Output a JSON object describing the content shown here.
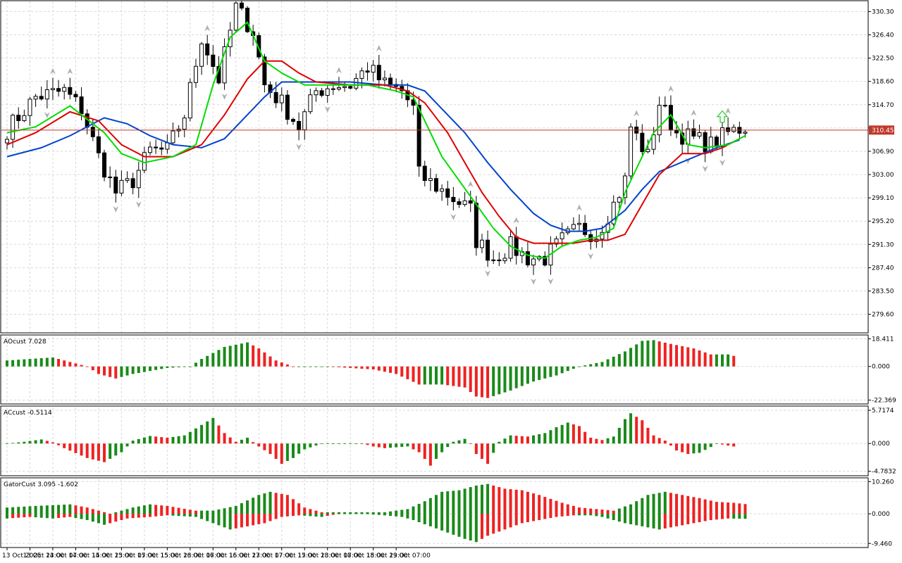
{
  "chart_data": [
    {
      "type": "candlestick",
      "panel": "main",
      "y_ticks": [
        "330.30",
        "326.40",
        "322.50",
        "318.60",
        "314.70",
        "310.80",
        "306.90",
        "303.00",
        "299.10",
        "295.20",
        "291.30",
        "287.40",
        "283.50",
        "279.60"
      ],
      "ylim": [
        276.6,
        332.0
      ],
      "current_price": 310.45,
      "current_price_label": "310.45",
      "x_ticks": [
        "13 Oct 2025",
        "13 Oct 23:00",
        "14 Oct 07:00",
        "14 Oct 15:00",
        "14 Oct 23:00",
        "15 Oct 07:00",
        "15 Oct 15:00",
        "15 Oct 23:00",
        "16 Oct 07:00",
        "16 Oct 15:00",
        "16 Oct 23:00",
        "17 Oct 07:00",
        "17 Oct 15:00",
        "17 Oct 23:00",
        "18 Oct 07:00",
        "18 Oct 15:00",
        "18 Oct 23:00",
        "19 Oct 07:00"
      ],
      "bar_hours": 2,
      "close_path": [
        [
          0,
          310.5
        ],
        [
          5,
          316
        ],
        [
          10,
          317
        ],
        [
          13,
          314
        ],
        [
          16,
          306
        ],
        [
          19,
          300
        ],
        [
          22,
          302
        ],
        [
          25,
          307
        ],
        [
          28,
          307
        ],
        [
          31,
          313
        ],
        [
          34,
          326
        ],
        [
          37,
          319
        ],
        [
          40,
          331
        ],
        [
          43,
          327
        ],
        [
          45,
          318
        ],
        [
          48,
          315
        ],
        [
          51,
          311
        ],
        [
          54,
          317
        ],
        [
          57,
          318
        ],
        [
          60,
          318
        ],
        [
          63,
          321
        ],
        [
          66,
          318
        ],
        [
          69,
          317
        ],
        [
          71,
          314
        ],
        [
          72,
          303
        ],
        [
          75,
          301
        ],
        [
          78,
          299
        ],
        [
          81,
          297
        ],
        [
          82,
          292
        ],
        [
          85,
          289
        ],
        [
          88,
          291
        ],
        [
          91,
          289
        ],
        [
          94,
          289
        ],
        [
          97,
          292
        ],
        [
          100,
          294
        ],
        [
          103,
          293
        ],
        [
          106,
          298
        ],
        [
          108,
          302
        ],
        [
          109,
          311
        ],
        [
          112,
          306
        ],
        [
          114,
          315
        ],
        [
          117,
          310
        ],
        [
          120,
          309
        ],
        [
          123,
          308
        ],
        [
          126,
          310
        ],
        [
          129,
          311
        ]
      ],
      "ma_green": {
        "color": "#00dd00",
        "points": [
          [
            0,
            310
          ],
          [
            5,
            311
          ],
          [
            11,
            314.5
          ],
          [
            17,
            310
          ],
          [
            20,
            306.5
          ],
          [
            24,
            305
          ],
          [
            29,
            306
          ],
          [
            33,
            308
          ],
          [
            36,
            318
          ],
          [
            39,
            326
          ],
          [
            42,
            328.5
          ],
          [
            45,
            322
          ],
          [
            48,
            320
          ],
          [
            52,
            318
          ],
          [
            60,
            318
          ],
          [
            63,
            318
          ],
          [
            68,
            317
          ],
          [
            71,
            316
          ],
          [
            73,
            312
          ],
          [
            76,
            306
          ],
          [
            79,
            302
          ],
          [
            82,
            298
          ],
          [
            85,
            294
          ],
          [
            88,
            291
          ],
          [
            91,
            289.5
          ],
          [
            94,
            289
          ],
          [
            97,
            291
          ],
          [
            100,
            292
          ],
          [
            103,
            292.5
          ],
          [
            106,
            294
          ],
          [
            108,
            300
          ],
          [
            110,
            304
          ],
          [
            113,
            310
          ],
          [
            116,
            313
          ],
          [
            119,
            308
          ],
          [
            122,
            307.5
          ],
          [
            126,
            308
          ],
          [
            129,
            309.5
          ]
        ]
      },
      "ma_red": {
        "color": "#dd0000",
        "points": [
          [
            0,
            308
          ],
          [
            5,
            310
          ],
          [
            11,
            313.5
          ],
          [
            16,
            312
          ],
          [
            20,
            308
          ],
          [
            24,
            306
          ],
          [
            29,
            306
          ],
          [
            34,
            308
          ],
          [
            38,
            313
          ],
          [
            42,
            319
          ],
          [
            45,
            322
          ],
          [
            48,
            322
          ],
          [
            51,
            320
          ],
          [
            54,
            318.5
          ],
          [
            60,
            318
          ],
          [
            66,
            318
          ],
          [
            70,
            317
          ],
          [
            73,
            315
          ],
          [
            77,
            310
          ],
          [
            80,
            305
          ],
          [
            83,
            300
          ],
          [
            86,
            296
          ],
          [
            89,
            292.5
          ],
          [
            92,
            291.5
          ],
          [
            96,
            291.5
          ],
          [
            99,
            291.5
          ],
          [
            102,
            292
          ],
          [
            105,
            292
          ],
          [
            108,
            293
          ],
          [
            111,
            298
          ],
          [
            114,
            303
          ],
          [
            118,
            306.5
          ],
          [
            122,
            306.5
          ],
          [
            125,
            307.5
          ],
          [
            128,
            309
          ]
        ]
      },
      "ma_blue": {
        "color": "#0044cc",
        "points": [
          [
            0,
            306
          ],
          [
            6,
            307.5
          ],
          [
            11,
            309.5
          ],
          [
            17,
            312.5
          ],
          [
            21,
            311.5
          ],
          [
            25,
            309.5
          ],
          [
            29,
            308
          ],
          [
            34,
            307.5
          ],
          [
            38,
            309
          ],
          [
            42,
            313
          ],
          [
            45,
            316
          ],
          [
            48,
            318.5
          ],
          [
            54,
            318.5
          ],
          [
            60,
            318.5
          ],
          [
            66,
            318
          ],
          [
            70,
            318
          ],
          [
            73,
            317
          ],
          [
            76,
            314
          ],
          [
            80,
            310
          ],
          [
            84,
            305
          ],
          [
            88,
            300.5
          ],
          [
            92,
            296.5
          ],
          [
            95,
            294.5
          ],
          [
            98,
            293.5
          ],
          [
            101,
            293.5
          ],
          [
            104,
            294
          ],
          [
            108,
            297
          ],
          [
            111,
            300.5
          ],
          [
            114,
            303.5
          ],
          [
            119,
            305.5
          ],
          [
            124,
            307.5
          ],
          [
            128,
            308.8
          ]
        ]
      },
      "arrow_x": 125,
      "arrow_price": 312.7
    },
    {
      "type": "histogram",
      "panel": "ao",
      "label": "AOcust 7.028",
      "y_ticks": [
        "18.411",
        "0.000",
        "-22.369"
      ],
      "ylim": [
        -24.0,
        20.0
      ],
      "profile": [
        [
          0,
          4
        ],
        [
          8,
          6
        ],
        [
          11,
          3
        ],
        [
          14,
          0
        ],
        [
          16,
          -5
        ],
        [
          19,
          -8
        ],
        [
          22,
          -5
        ],
        [
          28,
          -1
        ],
        [
          32,
          0
        ],
        [
          34,
          5
        ],
        [
          38,
          13
        ],
        [
          42,
          16
        ],
        [
          44,
          12
        ],
        [
          47,
          4
        ],
        [
          50,
          0
        ],
        [
          56,
          0
        ],
        [
          60,
          -1
        ],
        [
          64,
          -2
        ],
        [
          68,
          -5
        ],
        [
          72,
          -12
        ],
        [
          76,
          -12
        ],
        [
          80,
          -14
        ],
        [
          82,
          -20
        ],
        [
          84,
          -21
        ],
        [
          88,
          -16
        ],
        [
          92,
          -10
        ],
        [
          96,
          -6
        ],
        [
          100,
          0
        ],
        [
          104,
          3
        ],
        [
          108,
          10
        ],
        [
          111,
          17
        ],
        [
          113,
          17.5
        ],
        [
          116,
          15
        ],
        [
          120,
          12
        ],
        [
          123,
          8
        ],
        [
          126,
          8
        ],
        [
          127,
          7.028
        ]
      ]
    },
    {
      "type": "histogram",
      "panel": "ac",
      "label": "ACcust -0.5114",
      "y_ticks": [
        "5.7174",
        "0.000",
        "-4.7832"
      ],
      "ylim": [
        -5.3,
        6.2
      ],
      "profile": [
        [
          0,
          0
        ],
        [
          3,
          0.3
        ],
        [
          6,
          0.7
        ],
        [
          8,
          0.2
        ],
        [
          10,
          -0.8
        ],
        [
          14,
          -2.5
        ],
        [
          17,
          -3.2
        ],
        [
          20,
          -1.5
        ],
        [
          22,
          0.5
        ],
        [
          25,
          1.3
        ],
        [
          28,
          1.0
        ],
        [
          31,
          1.4
        ],
        [
          34,
          3.2
        ],
        [
          36,
          4.4
        ],
        [
          38,
          1.8
        ],
        [
          40,
          0.3
        ],
        [
          42,
          1.0
        ],
        [
          44,
          -0.5
        ],
        [
          46,
          -1.8
        ],
        [
          48,
          -3.5
        ],
        [
          50,
          -2.5
        ],
        [
          52,
          -1.0
        ],
        [
          55,
          0
        ],
        [
          58,
          0
        ],
        [
          62,
          0
        ],
        [
          64,
          -0.5
        ],
        [
          66,
          -0.8
        ],
        [
          70,
          -0.5
        ],
        [
          72,
          -1.5
        ],
        [
          74,
          -3.8
        ],
        [
          76,
          -1.5
        ],
        [
          78,
          0.3
        ],
        [
          80,
          0.8
        ],
        [
          81,
          0
        ],
        [
          82,
          -1.8
        ],
        [
          84,
          -3.5
        ],
        [
          86,
          0.3
        ],
        [
          88,
          1.4
        ],
        [
          91,
          1.2
        ],
        [
          94,
          1.8
        ],
        [
          96,
          2.8
        ],
        [
          98,
          3.6
        ],
        [
          100,
          3.0
        ],
        [
          102,
          1.0
        ],
        [
          104,
          0.6
        ],
        [
          106,
          1.2
        ],
        [
          108,
          4.2
        ],
        [
          109,
          5.2
        ],
        [
          111,
          4.0
        ],
        [
          113,
          1.4
        ],
        [
          115,
          0.5
        ],
        [
          117,
          -1.2
        ],
        [
          119,
          -1.8
        ],
        [
          121,
          -1.6
        ],
        [
          123,
          -0.6
        ],
        [
          124,
          0.0
        ],
        [
          127,
          -0.5114
        ]
      ]
    },
    {
      "type": "gator",
      "panel": "gator",
      "label": "GatorCust 3.095 -1.602",
      "y_ticks": [
        "10.260",
        "0.000",
        "-9.460"
      ],
      "ylim": [
        -10.3,
        11.0
      ],
      "upper": [
        [
          0,
          2
        ],
        [
          5,
          2.5
        ],
        [
          11,
          3
        ],
        [
          14,
          2
        ],
        [
          18,
          0
        ],
        [
          22,
          2
        ],
        [
          25,
          3
        ],
        [
          28,
          2.5
        ],
        [
          33,
          1
        ],
        [
          36,
          1
        ],
        [
          40,
          2.5
        ],
        [
          44,
          6
        ],
        [
          46,
          7
        ],
        [
          49,
          6
        ],
        [
          52,
          2
        ],
        [
          55,
          0.5
        ],
        [
          58,
          0.5
        ],
        [
          62,
          0.5
        ],
        [
          66,
          0.5
        ],
        [
          70,
          1.5
        ],
        [
          73,
          4
        ],
        [
          76,
          7
        ],
        [
          79,
          7.5
        ],
        [
          82,
          9
        ],
        [
          84,
          9.5
        ],
        [
          87,
          8
        ],
        [
          90,
          7.5
        ],
        [
          93,
          6
        ],
        [
          97,
          3.5
        ],
        [
          100,
          2
        ],
        [
          103,
          1.5
        ],
        [
          106,
          1
        ],
        [
          109,
          3
        ],
        [
          112,
          6
        ],
        [
          115,
          7
        ],
        [
          118,
          6
        ],
        [
          121,
          5
        ],
        [
          124,
          3.8
        ],
        [
          127,
          3.5
        ],
        [
          129,
          3.095
        ]
      ],
      "lower": [
        [
          0,
          -1.5
        ],
        [
          4,
          -1
        ],
        [
          8,
          -1.5
        ],
        [
          11,
          -1
        ],
        [
          14,
          -2
        ],
        [
          17,
          -3.5
        ],
        [
          21,
          -1.5
        ],
        [
          25,
          -1
        ],
        [
          28,
          -0.5
        ],
        [
          33,
          -1
        ],
        [
          36,
          -3
        ],
        [
          39,
          -5
        ],
        [
          42,
          -4
        ],
        [
          45,
          -3
        ],
        [
          48,
          -1
        ],
        [
          51,
          -0.5
        ],
        [
          55,
          -1
        ],
        [
          58,
          0
        ],
        [
          62,
          0
        ],
        [
          66,
          -0.5
        ],
        [
          69,
          -1
        ],
        [
          71,
          -2
        ],
        [
          74,
          -4
        ],
        [
          77,
          -6
        ],
        [
          80,
          -8
        ],
        [
          82,
          -9
        ],
        [
          84,
          -7
        ],
        [
          87,
          -5
        ],
        [
          90,
          -3
        ],
        [
          93,
          -2
        ],
        [
          96,
          -1
        ],
        [
          99,
          -0.5
        ],
        [
          102,
          -0.5
        ],
        [
          104,
          -1
        ],
        [
          106,
          -2
        ],
        [
          108,
          -3
        ],
        [
          111,
          -4
        ],
        [
          114,
          -5
        ],
        [
          117,
          -4
        ],
        [
          120,
          -3
        ],
        [
          123,
          -2
        ],
        [
          126,
          -1.5
        ],
        [
          129,
          -1.602
        ]
      ]
    }
  ]
}
